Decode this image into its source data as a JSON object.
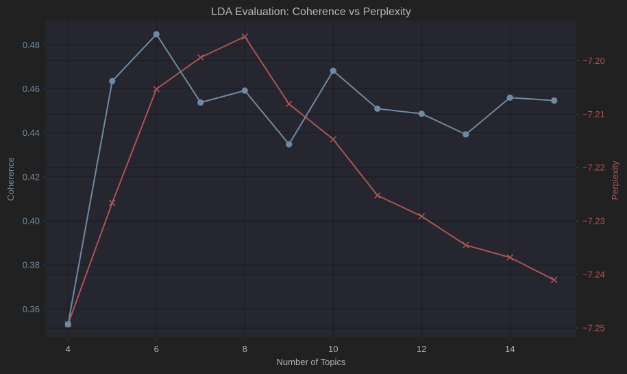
{
  "chart_data": {
    "type": "line",
    "title": "LDA Evaluation: Coherence vs Perplexity",
    "xlabel": "Number of Topics",
    "ylabel_left": "Coherence",
    "ylabel_right": "Perplexity",
    "x": [
      4,
      5,
      6,
      7,
      8,
      9,
      10,
      11,
      12,
      13,
      14,
      15
    ],
    "x_ticks": [
      4,
      6,
      8,
      10,
      12,
      14
    ],
    "xlim": [
      3.5,
      15.5
    ],
    "ylim_left": [
      0.347,
      0.491
    ],
    "ylim_right": [
      -7.2518,
      -7.1925
    ],
    "y_ticks_left": [
      0.36,
      0.38,
      0.4,
      0.42,
      0.44,
      0.46,
      0.48
    ],
    "y_ticks_right": [
      -7.25,
      -7.24,
      -7.23,
      -7.22,
      -7.21,
      -7.2
    ],
    "y_tick_labels_left": [
      "0.36",
      "0.38",
      "0.40",
      "0.42",
      "0.44",
      "0.46",
      "0.48"
    ],
    "y_tick_labels_right": [
      "−7.25",
      "−7.24",
      "−7.23",
      "−7.22",
      "−7.21",
      "−7.20"
    ],
    "grid": true,
    "series": [
      {
        "name": "Coherence",
        "axis": "left",
        "marker": "circle",
        "color": "#6f8ba3",
        "values": [
          0.353,
          0.4635,
          0.4848,
          0.4538,
          0.4592,
          0.4348,
          0.4682,
          0.451,
          0.4487,
          0.4393,
          0.456,
          0.4547
        ]
      },
      {
        "name": "Perplexity",
        "axis": "right",
        "marker": "x",
        "color": "#a95555",
        "values": [
          -7.2493,
          -7.2266,
          -7.2053,
          -7.1994,
          -7.1955,
          -7.2081,
          -7.2147,
          -7.2252,
          -7.2291,
          -7.2345,
          -7.2368,
          -7.241
        ]
      }
    ]
  },
  "colors": {
    "background": "#212121",
    "plot_area": "#262630",
    "grid": "#1a1a1e",
    "text": "#b5b5b5",
    "left_axis": "#6f8ba3",
    "right_axis": "#a95555"
  }
}
